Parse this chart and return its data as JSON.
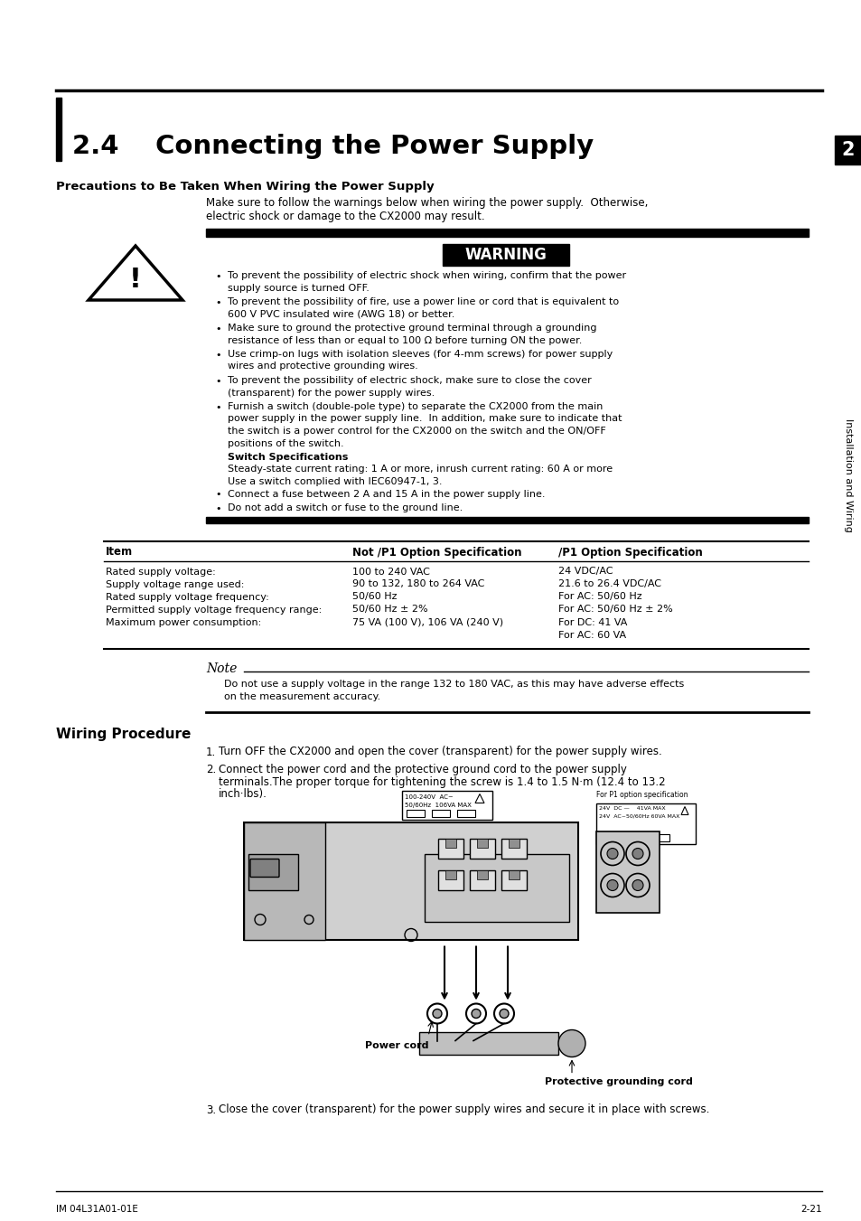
{
  "title": "2.4    Connecting the Power Supply",
  "section_header": "Precautions to Be Taken When Wiring the Power Supply",
  "intro_text": "Make sure to follow the warnings below when wiring the power supply.  Otherwise,\nelectric shock or damage to the CX2000 may result.",
  "warning_label": "WARNING",
  "warning_bullets": [
    "To prevent the possibility of electric shock when wiring, confirm that the power\nsupply source is turned OFF.",
    "To prevent the possibility of fire, use a power line or cord that is equivalent to\n600 V PVC insulated wire (AWG 18) or better.",
    "Make sure to ground the protective ground terminal through a grounding\nresistance of less than or equal to 100 Ω before turning ON the power.",
    "Use crimp-on lugs with isolation sleeves (for 4-mm screws) for power supply\nwires and protective grounding wires.",
    "To prevent the possibility of electric shock, make sure to close the cover\n(transparent) for the power supply wires.",
    "Furnish a switch (double-pole type) to separate the CX2000 from the main\npower supply in the power supply line.  In addition, make sure to indicate that\nthe switch is a power control for the CX2000 on the switch and the ON/OFF\npositions of the switch.",
    "Connect a fuse between 2 A and 15 A in the power supply line.",
    "Do not add a switch or fuse to the ground line."
  ],
  "switch_spec_header": "Switch Specifications",
  "switch_spec_text": "Steady-state current rating: 1 A or more, inrush current rating: 60 A or more\nUse a switch complied with IEC60947-1, 3.",
  "table_headers": [
    "Item",
    "Not /P1 Option Specification",
    "/P1 Option Specification"
  ],
  "table_rows": [
    [
      "Rated supply voltage:",
      "100 to 240 VAC",
      "24 VDC/AC"
    ],
    [
      "Supply voltage range used:",
      "90 to 132, 180 to 264 VAC",
      "21.6 to 26.4 VDC/AC"
    ],
    [
      "Rated supply voltage frequency:",
      "50/60 Hz",
      "For AC: 50/60 Hz"
    ],
    [
      "Permitted supply voltage frequency range:",
      "50/60 Hz ± 2%",
      "For AC: 50/60 Hz ± 2%"
    ],
    [
      "Maximum power consumption:",
      "75 VA (100 V), 106 VA (240 V)",
      "For DC: 41 VA\nFor AC: 60 VA"
    ]
  ],
  "note_label": "Note",
  "note_text": "Do not use a supply voltage in the range 132 to 180 VAC, as this may have adverse effects\non the measurement accuracy.",
  "wiring_header": "Wiring Procedure",
  "wiring_steps": [
    "Turn OFF the CX2000 and open the cover (transparent) for the power supply wires.",
    "Connect the power cord and the protective ground cord to the power supply\nterminals.The proper torque for tightening the screw is 1.4 to 1.5 N·m (12.4 to 13.2\ninch·lbs).",
    "Close the cover (transparent) for the power supply wires and secure it in place with screws."
  ],
  "sidebar_text": "Installation and Wiring",
  "sidebar_number": "2",
  "footer_left": "IM 04L31A01-01E",
  "footer_right": "2-21",
  "bg_color": "#ffffff",
  "text_color": "#000000"
}
